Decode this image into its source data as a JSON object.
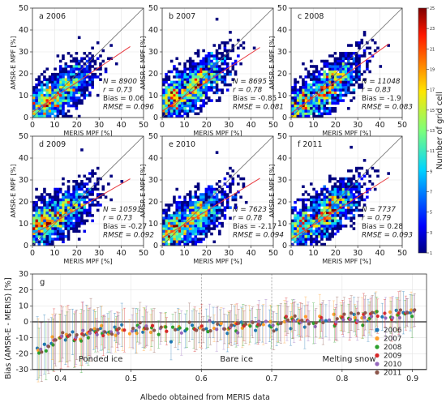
{
  "colorbar": {
    "label": "Number of grid cell",
    "ticks": [
      "1",
      "3",
      "5",
      "7",
      "9",
      "11",
      "13",
      "15",
      "17",
      "19",
      "21",
      "23",
      "25"
    ]
  },
  "panel_axes": {
    "xlabel": "MERIS MPF [%]",
    "ylabel": "AMSR-E MPF [%]",
    "xlim": [
      0,
      50
    ],
    "ylim": [
      0,
      50
    ],
    "ticks": [
      "0",
      "10",
      "20",
      "30",
      "40",
      "50"
    ]
  },
  "chart_data": [
    {
      "type": "scatter",
      "panel": "a",
      "year": "2006",
      "stats": {
        "n": "N = 8900",
        "r": "r = 0.73",
        "bias": "Bias = 0.06",
        "rmse": "RMSE = 0.096"
      },
      "fit": {
        "slope": 0.68,
        "intercept": 2.5
      }
    },
    {
      "type": "scatter",
      "panel": "b",
      "year": "2007",
      "stats": {
        "n": "N = 8695",
        "r": "r = 0.78",
        "bias": "Bias = -0.85",
        "rmse": "RMSE = 0.081"
      },
      "fit": {
        "slope": 0.66,
        "intercept": 3.0
      }
    },
    {
      "type": "scatter",
      "panel": "c",
      "year": "2008",
      "stats": {
        "n": "N = 11048",
        "r": "r = 0.83",
        "bias": "Bias = -1.9",
        "rmse": "RMSE = 0.083"
      },
      "fit": {
        "slope": 0.72,
        "intercept": 2.0
      }
    },
    {
      "type": "scatter",
      "panel": "d",
      "year": "2009",
      "stats": {
        "n": "N = 10591",
        "r": "r = 0.73",
        "bias": "Bias = -0.27",
        "rmse": "RMSE = 0.092"
      },
      "fit": {
        "slope": 0.58,
        "intercept": 5.0
      }
    },
    {
      "type": "scatter",
      "panel": "e",
      "year": "2010",
      "stats": {
        "n": "N = 7623",
        "r": "r = 0.78",
        "bias": "Bias = -2.17",
        "rmse": "RMSE = 0.094"
      },
      "fit": {
        "slope": 0.62,
        "intercept": 3.5
      }
    },
    {
      "type": "scatter",
      "panel": "f",
      "year": "2011",
      "stats": {
        "n": "N = 7737",
        "r": "r = 0.79",
        "bias": "Bias = 0.28",
        "rmse": "RMSE = 0.093"
      },
      "fit": {
        "slope": 0.64,
        "intercept": 3.0
      }
    },
    {
      "type": "scatter",
      "panel": "g",
      "xlabel": "Albedo obtained from MERIS data",
      "ylabel": "Bias (AMSR-E - MERIS) [%]",
      "xlim": [
        0.36,
        0.92
      ],
      "ylim": [
        -30,
        30
      ],
      "xticks": [
        "0.4",
        "0.5",
        "0.6",
        "0.7",
        "0.8",
        "0.9"
      ],
      "yticks": [
        "-30",
        "-20",
        "-10",
        "0",
        "10",
        "20",
        "30"
      ],
      "regions": [
        "Ponded ice",
        "Bare ice",
        "Melting snow"
      ],
      "boundaries": [
        0.6,
        0.7
      ],
      "series": [
        {
          "name": "2006",
          "color": "#1f77b4",
          "offset": 0.0
        },
        {
          "name": "2007",
          "color": "#ff9f2e",
          "offset": 0.6
        },
        {
          "name": "2008",
          "color": "#2ca02c",
          "offset": -0.9
        },
        {
          "name": "2009",
          "color": "#d62728",
          "offset": 0.3
        },
        {
          "name": "2010",
          "color": "#9467bd",
          "offset": -0.5
        },
        {
          "name": "2011",
          "color": "#8c564b",
          "offset": 1.0
        }
      ],
      "mean_trend": {
        "x": [
          0.37,
          0.4,
          0.45,
          0.5,
          0.55,
          0.6,
          0.65,
          0.7,
          0.75,
          0.8,
          0.85,
          0.9
        ],
        "y": [
          -17,
          -10,
          -7,
          -5,
          -4,
          -3.5,
          -3,
          -1.5,
          0,
          2,
          4,
          6
        ]
      },
      "step": 0.01
    }
  ]
}
